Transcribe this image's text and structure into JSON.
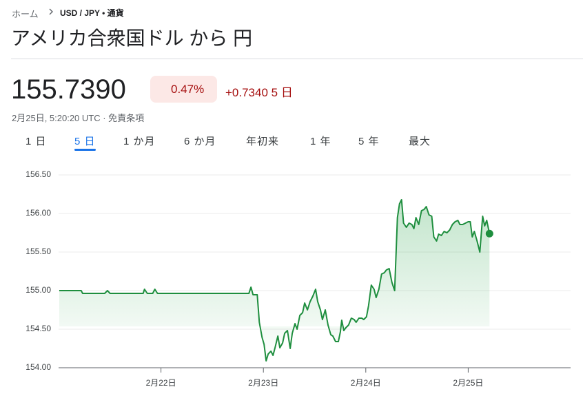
{
  "breadcrumb": {
    "home": "ホーム",
    "current": "USD / JPY • 通貨"
  },
  "title": "アメリカ合衆国ドル から 円",
  "price": "155.7390",
  "change_percent": "0.47%",
  "change": "+0.7340",
  "change_period": "5 日",
  "timestamp": "2月25日, 5:20:20 UTC · 免責条項",
  "tabs": [
    "1 日",
    "5 日",
    "1 か月",
    "6 か月",
    "年初来",
    "1 年",
    "5 年",
    "最大"
  ],
  "selected_tab": 1,
  "chart_data": {
    "type": "line",
    "xlim": [
      0,
      5
    ],
    "xticks": [
      {
        "value": 1,
        "label": "2月22日"
      },
      {
        "value": 2,
        "label": "2月23日"
      },
      {
        "value": 3,
        "label": "2月24日"
      },
      {
        "value": 4,
        "label": "2月25日"
      }
    ],
    "ylim": [
      154,
      156.5
    ],
    "yticks": [
      {
        "value": 154,
        "label": "154.00"
      },
      {
        "value": 154.5,
        "label": "154.50"
      },
      {
        "value": 155,
        "label": "155.00"
      },
      {
        "value": 155.5,
        "label": "155.50"
      },
      {
        "value": 156,
        "label": "156.00"
      },
      {
        "value": 156.5,
        "label": "156.50"
      }
    ],
    "grid": true,
    "series": [
      {
        "color": "#1e8e3e",
        "x": [
          0.007,
          0.221,
          0.235,
          0.45,
          0.477,
          0.503,
          0.826,
          0.839,
          0.866,
          0.919,
          0.94,
          0.966,
          1.859,
          1.879,
          1.899,
          1.94,
          1.96,
          1.987,
          2.007,
          2.027,
          2.047,
          2.074,
          2.094,
          2.114,
          2.141,
          2.161,
          2.188,
          2.208,
          2.235,
          2.262,
          2.282,
          2.309,
          2.329,
          2.356,
          2.383,
          2.403,
          2.43,
          2.456,
          2.483,
          2.51,
          2.53,
          2.557,
          2.577,
          2.604,
          2.631,
          2.658,
          2.678,
          2.705,
          2.732,
          2.752,
          2.765,
          2.785,
          2.805,
          2.832,
          2.859,
          2.886,
          2.906,
          2.933,
          2.96,
          2.98,
          3.007,
          3.027,
          3.054,
          3.081,
          3.101,
          3.128,
          3.154,
          3.181,
          3.201,
          3.228,
          3.255,
          3.282,
          3.309,
          3.329,
          3.349,
          3.369,
          3.396,
          3.423,
          3.45,
          3.47,
          3.49,
          3.517,
          3.544,
          3.57,
          3.591,
          3.617,
          3.644,
          3.664,
          3.691,
          3.711,
          3.738,
          3.765,
          3.792,
          3.819,
          3.846,
          3.872,
          3.899,
          3.919,
          3.946,
          3.973,
          4.0,
          4.02,
          4.04,
          4.06,
          4.087,
          4.114,
          4.141,
          4.161,
          4.181,
          4.208
        ],
        "values": [
          155.0,
          155.0,
          154.964,
          154.964,
          155.0,
          154.964,
          154.964,
          155.018,
          154.964,
          154.964,
          155.018,
          154.964,
          154.964,
          155.045,
          154.946,
          154.946,
          154.589,
          154.393,
          154.304,
          154.089,
          154.179,
          154.214,
          154.161,
          154.259,
          154.411,
          154.259,
          154.321,
          154.446,
          154.482,
          154.25,
          154.446,
          154.571,
          154.5,
          154.679,
          154.714,
          154.839,
          154.75,
          154.857,
          154.929,
          155.018,
          154.857,
          154.75,
          154.625,
          154.75,
          154.554,
          154.429,
          154.411,
          154.339,
          154.339,
          154.464,
          154.616,
          154.482,
          154.518,
          154.554,
          154.643,
          154.625,
          154.589,
          154.643,
          154.643,
          154.625,
          154.661,
          154.804,
          155.071,
          155.018,
          154.911,
          155.018,
          155.214,
          155.232,
          155.268,
          155.286,
          155.107,
          155.0,
          155.946,
          156.125,
          156.179,
          155.875,
          155.821,
          155.875,
          155.857,
          155.804,
          155.946,
          155.857,
          156.036,
          156.054,
          156.089,
          155.982,
          155.964,
          155.696,
          155.643,
          155.732,
          155.714,
          155.768,
          155.75,
          155.786,
          155.857,
          155.893,
          155.911,
          155.857,
          155.857,
          155.875,
          155.893,
          155.893,
          155.696,
          155.768,
          155.643,
          155.5,
          155.964,
          155.839,
          155.911,
          155.739
        ]
      }
    ]
  }
}
